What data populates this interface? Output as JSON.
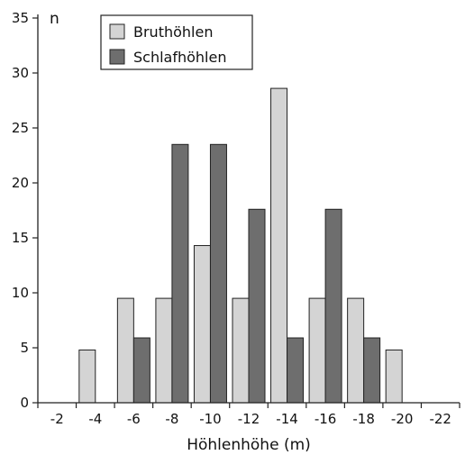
{
  "chart_data": {
    "type": "bar",
    "title": "",
    "xlabel": "Höhlenhöhe (m)",
    "ylabel": "n",
    "ylim": [
      0,
      35
    ],
    "yticks": [
      "0",
      "5",
      "10",
      "15",
      "20",
      "25",
      "30",
      "35"
    ],
    "categories": [
      "-2",
      "-4",
      "-6",
      "-8",
      "-10",
      "-12",
      "-14",
      "-16",
      "-18",
      "-20",
      "-22"
    ],
    "series": [
      {
        "name": "Bruthöhlen",
        "color": "#d4d4d4",
        "values": [
          0,
          4.8,
          9.5,
          9.5,
          14.3,
          9.5,
          28.6,
          9.5,
          9.5,
          4.8,
          0
        ]
      },
      {
        "name": "Schlafhöhlen",
        "color": "#6e6e6e",
        "values": [
          0,
          0,
          5.9,
          23.5,
          23.5,
          17.6,
          5.9,
          17.6,
          5.9,
          0,
          0
        ]
      }
    ],
    "legend_position": "top-left",
    "grid": false
  }
}
